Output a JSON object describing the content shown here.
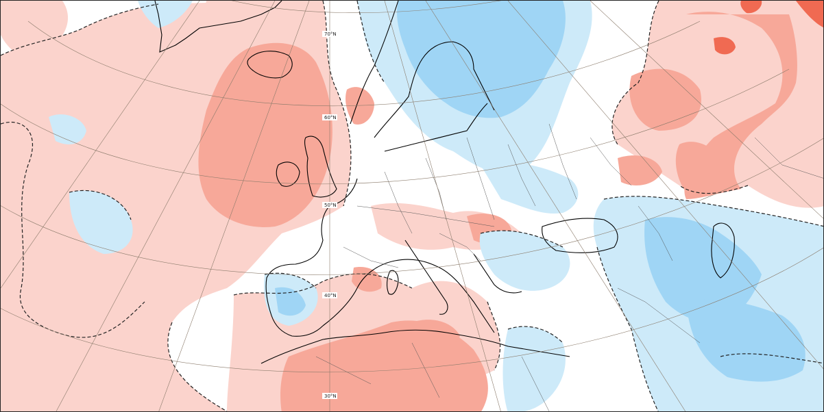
{
  "map": {
    "type": "temperature anomaly map",
    "region": "Europe and North Atlantic",
    "colors": {
      "warm_light": "#fbd3cc",
      "warm_mid": "#f7a899",
      "warm_strong": "#f06a52",
      "warm_extreme": "#e0321f",
      "cool_light": "#cdeaf9",
      "cool_mid": "#9fd5f5",
      "neutral": "#ffffff",
      "coastline": "#000000",
      "graticule": "#8a7a6a"
    },
    "latitude_labels": [
      "70°N",
      "60°N",
      "50°N",
      "40°N",
      "30°N"
    ]
  }
}
